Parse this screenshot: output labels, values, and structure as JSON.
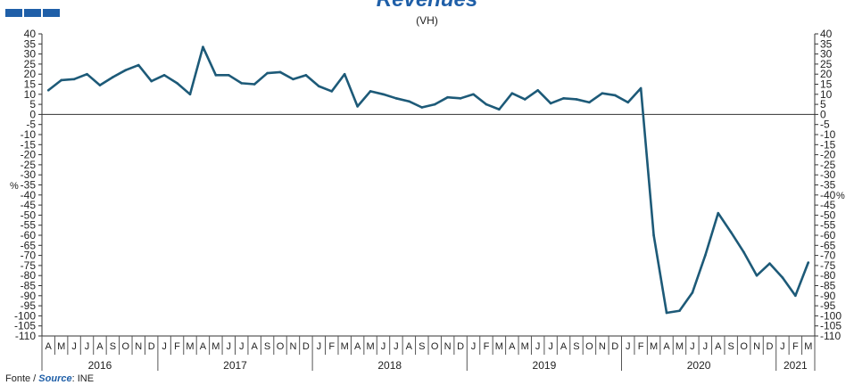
{
  "header": {
    "title": "Revenues",
    "subtitle": "(VH)"
  },
  "source": {
    "prefix": "Fonte / ",
    "label": "Source",
    "suffix": ": INE"
  },
  "logo": {
    "color": "#1f5fa8"
  },
  "chart_data": {
    "type": "line",
    "title": "Revenues",
    "subtitle": "(VH)",
    "ylabel_left": "%",
    "ylabel_right": "%",
    "ylim": [
      -110,
      40
    ],
    "ytick_step": 5,
    "grid": false,
    "line_color": "#1d5a78",
    "month_labels": [
      "A",
      "M",
      "J",
      "J",
      "A",
      "S",
      "O",
      "N",
      "D",
      "J",
      "F",
      "M",
      "A",
      "M",
      "J",
      "J",
      "A",
      "S",
      "O",
      "N",
      "D",
      "J",
      "F",
      "M",
      "A",
      "M",
      "J",
      "J",
      "A",
      "S",
      "O",
      "N",
      "D",
      "J",
      "F",
      "M",
      "A",
      "M",
      "J",
      "J",
      "A",
      "S",
      "O",
      "N",
      "D",
      "J",
      "F",
      "M",
      "A",
      "M",
      "J",
      "J",
      "A",
      "S",
      "O",
      "N",
      "D",
      "J",
      "F",
      "M"
    ],
    "year_groups": [
      {
        "label": "2016",
        "start": 0,
        "count": 9
      },
      {
        "label": "2017",
        "start": 9,
        "count": 12
      },
      {
        "label": "2018",
        "start": 21,
        "count": 12
      },
      {
        "label": "2019",
        "start": 33,
        "count": 12
      },
      {
        "label": "2020",
        "start": 45,
        "count": 12
      },
      {
        "label": "2021",
        "start": 57,
        "count": 3
      }
    ],
    "series": [
      {
        "values": [
          12,
          17,
          17.5,
          20,
          14.5,
          18.5,
          22,
          24.5,
          16.5,
          19.5,
          15.5,
          10,
          33.5,
          19.5,
          19.5,
          15.5,
          15,
          20.5,
          21,
          17.5,
          19.5,
          14,
          11.5,
          20,
          4,
          11.5,
          10,
          8,
          6.5,
          3.5,
          5,
          8.5,
          8,
          10,
          5,
          2.5,
          10.5,
          7.5,
          12,
          5.5,
          8,
          7.5,
          6,
          10.5,
          9.5,
          6,
          13,
          -60,
          -98.5,
          -97.5,
          -88.5,
          -70,
          -49,
          -58.5,
          -68.5,
          -80,
          -74,
          -81,
          -90,
          -73.5
        ]
      }
    ]
  }
}
